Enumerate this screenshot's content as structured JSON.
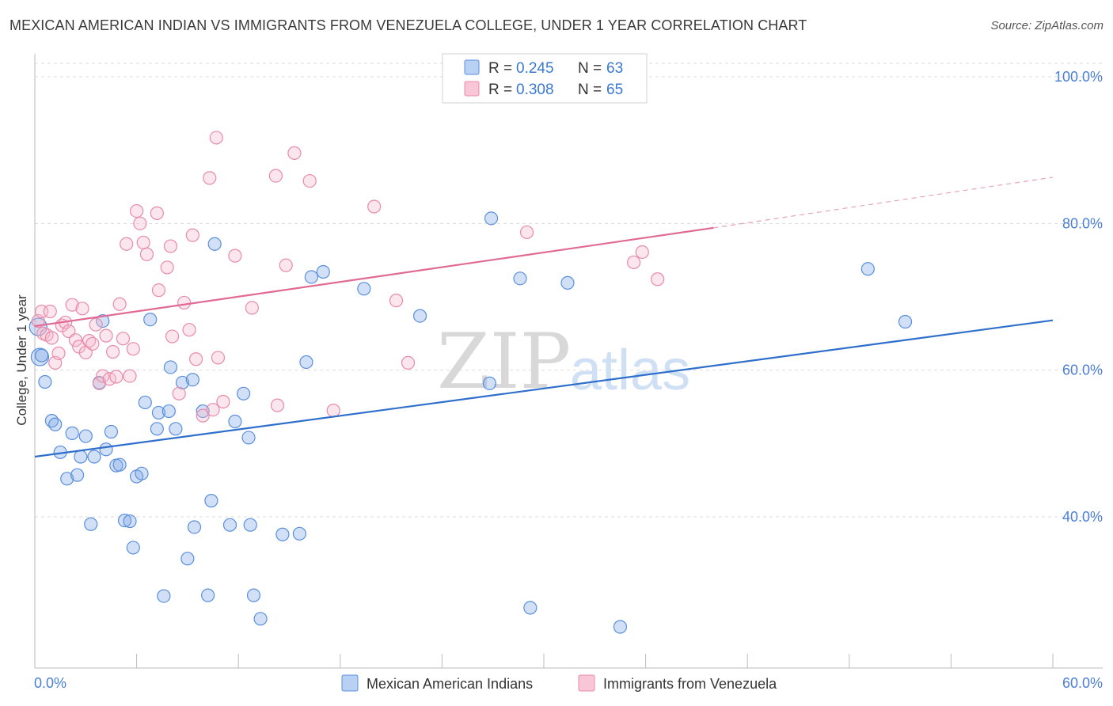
{
  "title": "MEXICAN AMERICAN INDIAN VS IMMIGRANTS FROM VENEZUELA COLLEGE, UNDER 1 YEAR CORRELATION CHART",
  "source": "Source: ZipAtlas.com",
  "watermark": {
    "zip": "ZIP",
    "atlas": "atlas"
  },
  "legend_top": [
    {
      "r_label": "R = ",
      "r_value": "0.245",
      "n_label": "N = ",
      "n_value": "63",
      "color": "#7aa7e6"
    },
    {
      "r_label": "R = ",
      "r_value": "0.308",
      "n_label": "N = ",
      "n_value": "65",
      "color": "#f0a0bd"
    }
  ],
  "chart_data": {
    "type": "scatter",
    "title": "MEXICAN AMERICAN INDIAN VS IMMIGRANTS FROM VENEZUELA COLLEGE, UNDER 1 YEAR CORRELATION CHART",
    "xlabel": "",
    "ylabel": "College, Under 1 year",
    "xlim": [
      0,
      60
    ],
    "ylim": [
      20,
      102
    ],
    "x_tick_labels": [
      "0.0%",
      "60.0%"
    ],
    "y_ticks": [
      40,
      60,
      80,
      100
    ],
    "y_tick_labels": [
      "40.0%",
      "60.0%",
      "80.0%",
      "100.0%"
    ],
    "grid": true,
    "legend": "top-center",
    "series": [
      {
        "name": "Mexican American Indians",
        "color": "#7aa7e6",
        "stroke": "#5a8fdc",
        "trend": {
          "x": [
            0,
            60
          ],
          "y": [
            48.2,
            66.8
          ],
          "dashed_from": null
        },
        "points": [
          [
            0.2,
            65.9
          ],
          [
            0.3,
            61.8
          ],
          [
            0.6,
            58.4
          ],
          [
            1.0,
            53.1
          ],
          [
            1.2,
            52.6
          ],
          [
            1.5,
            48.8
          ],
          [
            1.9,
            45.2
          ],
          [
            2.2,
            51.4
          ],
          [
            2.5,
            45.7
          ],
          [
            2.7,
            48.2
          ],
          [
            3.0,
            51.0
          ],
          [
            3.3,
            39.0
          ],
          [
            3.5,
            48.2
          ],
          [
            3.8,
            58.3
          ],
          [
            4.0,
            66.7
          ],
          [
            4.2,
            49.2
          ],
          [
            4.5,
            51.6
          ],
          [
            4.8,
            47.0
          ],
          [
            5.0,
            47.1
          ],
          [
            5.3,
            39.5
          ],
          [
            5.6,
            39.4
          ],
          [
            5.8,
            35.8
          ],
          [
            6.0,
            45.5
          ],
          [
            6.3,
            45.9
          ],
          [
            6.5,
            55.6
          ],
          [
            6.8,
            66.9
          ],
          [
            7.2,
            52.0
          ],
          [
            7.3,
            54.2
          ],
          [
            7.6,
            29.2
          ],
          [
            7.9,
            54.4
          ],
          [
            8.0,
            60.4
          ],
          [
            8.3,
            52.0
          ],
          [
            8.7,
            58.3
          ],
          [
            9.0,
            34.3
          ],
          [
            9.4,
            38.6
          ],
          [
            9.3,
            58.7
          ],
          [
            9.9,
            54.4
          ],
          [
            10.2,
            29.3
          ],
          [
            10.4,
            42.2
          ],
          [
            10.6,
            77.2
          ],
          [
            11.5,
            38.9
          ],
          [
            11.8,
            53.0
          ],
          [
            12.3,
            56.8
          ],
          [
            12.6,
            50.8
          ],
          [
            12.7,
            38.9
          ],
          [
            12.9,
            29.3
          ],
          [
            13.3,
            26.1
          ],
          [
            14.6,
            37.6
          ],
          [
            15.6,
            37.7
          ],
          [
            16.0,
            61.1
          ],
          [
            16.3,
            72.7
          ],
          [
            17.0,
            73.4
          ],
          [
            19.4,
            71.1
          ],
          [
            22.7,
            67.4
          ],
          [
            26.8,
            58.2
          ],
          [
            26.9,
            80.7
          ],
          [
            28.6,
            72.5
          ],
          [
            29.2,
            27.6
          ],
          [
            31.4,
            71.9
          ],
          [
            34.5,
            25.0
          ],
          [
            49.1,
            73.8
          ],
          [
            51.3,
            66.6
          ],
          [
            0.4,
            62.0
          ]
        ]
      },
      {
        "name": "Immigrants from Venezuela",
        "color": "#f5b8cc",
        "stroke": "#e88aaa",
        "trend": {
          "x": [
            0,
            40,
            60
          ],
          "y": [
            66.0,
            79.4,
            86.3
          ],
          "dashed_from": 40
        },
        "points": [
          [
            0.2,
            66.7
          ],
          [
            0.4,
            68.0
          ],
          [
            0.5,
            65.0
          ],
          [
            0.7,
            64.8
          ],
          [
            0.9,
            68.0
          ],
          [
            1.0,
            64.4
          ],
          [
            1.2,
            61.0
          ],
          [
            1.4,
            62.3
          ],
          [
            1.6,
            66.1
          ],
          [
            1.8,
            66.5
          ],
          [
            2.0,
            65.3
          ],
          [
            2.2,
            68.9
          ],
          [
            2.4,
            64.1
          ],
          [
            2.6,
            63.2
          ],
          [
            2.8,
            68.4
          ],
          [
            3.0,
            62.4
          ],
          [
            3.2,
            64.0
          ],
          [
            3.4,
            63.6
          ],
          [
            3.6,
            66.2
          ],
          [
            3.8,
            58.2
          ],
          [
            4.0,
            59.2
          ],
          [
            4.2,
            64.7
          ],
          [
            4.4,
            58.8
          ],
          [
            4.6,
            62.5
          ],
          [
            4.8,
            59.1
          ],
          [
            5.0,
            69.0
          ],
          [
            5.2,
            64.3
          ],
          [
            5.4,
            77.2
          ],
          [
            5.6,
            59.2
          ],
          [
            5.8,
            62.9
          ],
          [
            6.0,
            81.7
          ],
          [
            6.2,
            80.0
          ],
          [
            6.4,
            77.4
          ],
          [
            6.6,
            75.8
          ],
          [
            7.2,
            81.4
          ],
          [
            7.3,
            70.9
          ],
          [
            7.8,
            74.0
          ],
          [
            8.0,
            76.9
          ],
          [
            8.1,
            64.6
          ],
          [
            8.5,
            56.8
          ],
          [
            8.8,
            69.2
          ],
          [
            9.1,
            65.5
          ],
          [
            9.3,
            78.4
          ],
          [
            9.5,
            61.5
          ],
          [
            9.9,
            53.8
          ],
          [
            10.3,
            86.2
          ],
          [
            10.5,
            54.6
          ],
          [
            10.7,
            91.7
          ],
          [
            10.8,
            61.7
          ],
          [
            11.1,
            55.7
          ],
          [
            11.8,
            75.6
          ],
          [
            12.8,
            68.5
          ],
          [
            14.2,
            86.5
          ],
          [
            14.3,
            55.2
          ],
          [
            14.8,
            74.3
          ],
          [
            15.3,
            89.6
          ],
          [
            16.2,
            85.8
          ],
          [
            17.6,
            54.5
          ],
          [
            20.0,
            82.3
          ],
          [
            21.3,
            69.5
          ],
          [
            22.0,
            61.0
          ],
          [
            29.0,
            78.8
          ],
          [
            35.3,
            74.7
          ],
          [
            35.8,
            76.1
          ],
          [
            36.7,
            72.4
          ]
        ]
      }
    ]
  },
  "legend_bottom": [
    {
      "label": "Mexican American Indians",
      "color": "#b8d0f3",
      "stroke": "#5a8fdc"
    },
    {
      "label": "Immigrants from Venezuela",
      "color": "#f8c6d6",
      "stroke": "#e88aaa"
    }
  ]
}
